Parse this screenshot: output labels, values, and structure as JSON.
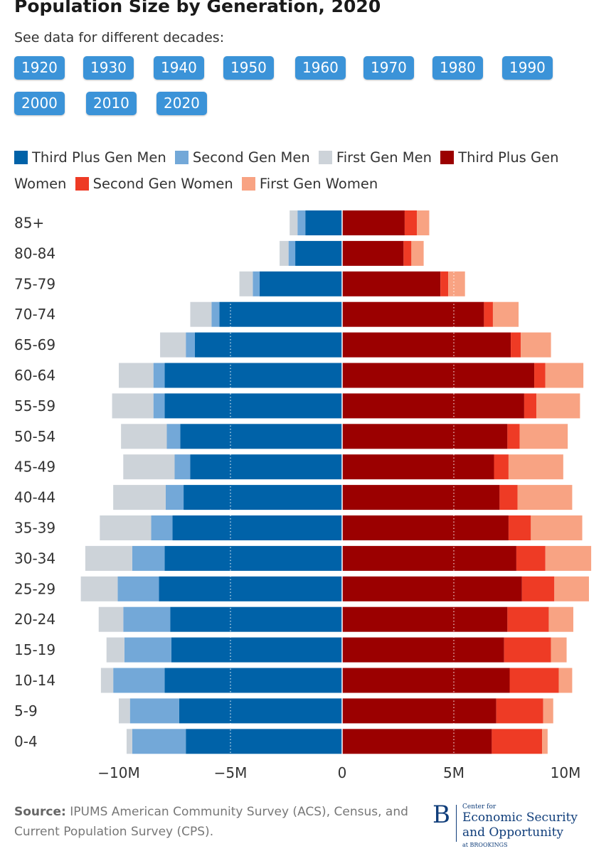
{
  "header": {
    "title": "Population Size by Generation, 2020",
    "subtitle": "See data for different decades:"
  },
  "decades": [
    "1920",
    "1930",
    "1940",
    "1950",
    "1960",
    "1970",
    "1980",
    "1990",
    "2000",
    "2010",
    "2020"
  ],
  "source": {
    "label": "Source:",
    "text": " IPUMS American Community Survey (ACS), Census, and Current Population Survey (CPS)."
  },
  "logo": {
    "letter": "B",
    "line0": "Center for",
    "line1": "Economic Security",
    "line2": "and Opportunity",
    "line3": "at BROOKINGS"
  },
  "chart_data": {
    "type": "bar",
    "orientation": "horizontal-diverging",
    "title": "Population Size by Generation, 2020",
    "xlim": [
      -10500000,
      11000000
    ],
    "xticks": [
      -10000000,
      -5000000,
      0,
      5000000,
      10000000
    ],
    "xtick_labels": [
      "−10M",
      "−5M",
      "0",
      "5M",
      "10M"
    ],
    "gridlines": "vertical dotted at ±5M",
    "legend_position": "top",
    "categories": [
      "85+",
      "80-84",
      "75-79",
      "70-74",
      "65-69",
      "60-64",
      "55-59",
      "50-54",
      "45-49",
      "40-44",
      "35-39",
      "30-34",
      "25-29",
      "20-24",
      "15-19",
      "10-14",
      "5-9",
      "0-4"
    ],
    "series": [
      {
        "name": "Third Plus Gen Men",
        "side": "left",
        "color": "#0062a8",
        "values": [
          -1650000,
          -2100000,
          -3700000,
          -5500000,
          -6600000,
          -7950000,
          -7950000,
          -7250000,
          -6800000,
          -7100000,
          -7600000,
          -7950000,
          -8200000,
          -7700000,
          -7650000,
          -7950000,
          -7300000,
          -7000000
        ]
      },
      {
        "name": "Second Gen Men",
        "side": "left",
        "color": "#73a8d8",
        "values": [
          -350000,
          -300000,
          -300000,
          -350000,
          -400000,
          -500000,
          -500000,
          -600000,
          -700000,
          -800000,
          -950000,
          -1450000,
          -1850000,
          -2100000,
          -2100000,
          -2300000,
          -2200000,
          -2400000
        ]
      },
      {
        "name": "First Gen Men",
        "side": "left",
        "color": "#cdd3d9",
        "values": [
          -350000,
          -400000,
          -600000,
          -950000,
          -1150000,
          -1550000,
          -1850000,
          -2050000,
          -2300000,
          -2350000,
          -2300000,
          -2100000,
          -1650000,
          -1100000,
          -800000,
          -550000,
          -500000,
          -250000
        ]
      },
      {
        "name": "Third Plus Gen Women",
        "side": "right",
        "color": "#9b0000",
        "values": [
          2800000,
          2750000,
          4400000,
          6350000,
          7550000,
          8600000,
          8150000,
          7400000,
          6800000,
          7050000,
          7450000,
          7800000,
          8050000,
          7400000,
          7250000,
          7500000,
          6900000,
          6700000
        ]
      },
      {
        "name": "Second Gen Women",
        "side": "right",
        "color": "#ee3b25",
        "values": [
          550000,
          350000,
          350000,
          400000,
          450000,
          500000,
          550000,
          550000,
          650000,
          800000,
          1000000,
          1300000,
          1450000,
          1850000,
          2100000,
          2200000,
          2100000,
          2250000
        ]
      },
      {
        "name": "First Gen Women",
        "side": "right",
        "color": "#f8a383",
        "values": [
          550000,
          550000,
          750000,
          1150000,
          1350000,
          1700000,
          1950000,
          2150000,
          2450000,
          2450000,
          2300000,
          2050000,
          1550000,
          1100000,
          700000,
          600000,
          450000,
          250000
        ]
      }
    ]
  }
}
